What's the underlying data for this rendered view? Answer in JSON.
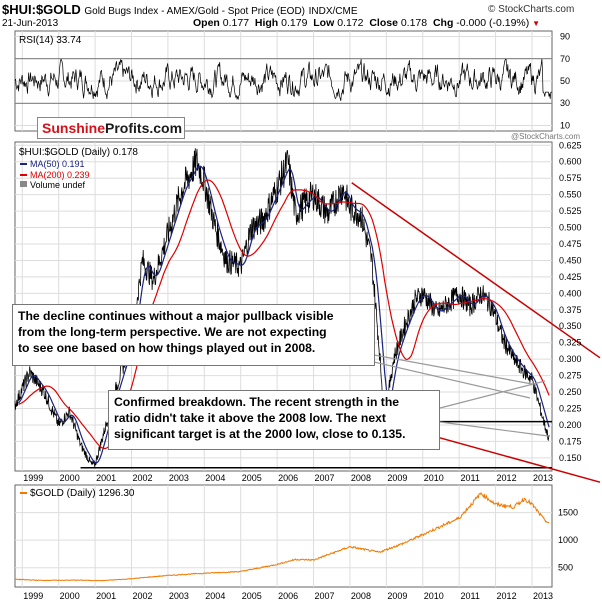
{
  "header": {
    "ticker": "$HUI:$GOLD",
    "description": "Gold Bugs Index - AMEX/Gold - Spot Price (EOD)",
    "exchange": "INDX/CME",
    "copyright": "© StockCharts.com",
    "date": "21-Jun-2013",
    "open_label": "Open",
    "open": "0.177",
    "high_label": "High",
    "high": "0.179",
    "low_label": "Low",
    "low": "0.172",
    "close_label": "Close",
    "close": "0.178",
    "chg_label": "Chg",
    "chg": "-0.000 (-0.19%)"
  },
  "watermark": {
    "left": "Sunshine",
    "right": "Profits.com",
    "stockcharts": "@StockCharts.com"
  },
  "legend": {
    "main": "$HUI:$GOLD (Daily) 0.178",
    "ma50": "MA(50) 0.191",
    "ma200": "MA(200) 0.239",
    "volume": "Volume undef",
    "gold": "$GOLD (Daily) 1296.30"
  },
  "annotations": {
    "box1": [
      "The decline continues without a major pullback visible",
      "from the long-term perspective. We are not expecting",
      "to see one based on how things played out in 2008."
    ],
    "box2": [
      "Confirmed breakdown. The recent strength in the",
      "ratio didn't take it above the 2008 low. The next",
      "significant target is at the 2000 low, close to 0.135."
    ]
  },
  "colors": {
    "price": "#000000",
    "ma50": "#1a237e",
    "ma200": "#e00000",
    "gold": "#f07800",
    "trend": "#cc0000",
    "grid": "#dddddd",
    "accent": "#d4121a"
  },
  "chart_data": [
    {
      "type": "line",
      "title": "RSI(14) 33.74",
      "series_name": "RSI(14)",
      "last_value": 33.74,
      "y_ticks": [
        10,
        30,
        50,
        70,
        90
      ],
      "ylim": [
        5,
        95
      ],
      "reference_lines": [
        30,
        70
      ]
    },
    {
      "type": "line",
      "title": "$HUI:$GOLD (Daily) 0.178",
      "x_ticks": [
        "1999",
        "2000",
        "2001",
        "2002",
        "2003",
        "2004",
        "2005",
        "2006",
        "2007",
        "2008",
        "2009",
        "2010",
        "2011",
        "2012",
        "2013"
      ],
      "y_ticks": [
        "0.625",
        "0.600",
        "0.575",
        "0.550",
        "0.525",
        "0.500",
        "0.475",
        "0.450",
        "0.425",
        "0.400",
        "0.375",
        "0.350",
        "0.325",
        "0.300",
        "0.275",
        "0.250",
        "0.225",
        "0.200",
        "0.175",
        "0.150"
      ],
      "ylim": [
        0.13,
        0.63
      ],
      "series": [
        {
          "name": "$HUI:$GOLD",
          "x": [
            1998.8,
            1999.2,
            1999.6,
            2000.0,
            2000.3,
            2000.6,
            2000.9,
            2001.0,
            2001.3,
            2001.6,
            2002.0,
            2002.3,
            2002.6,
            2003.0,
            2003.4,
            2003.8,
            2004.0,
            2004.3,
            2004.6,
            2005.0,
            2005.3,
            2005.6,
            2006.0,
            2006.3,
            2006.5,
            2006.8,
            2007.0,
            2007.4,
            2007.8,
            2008.0,
            2008.3,
            2008.6,
            2008.8,
            2008.95,
            2009.2,
            2009.5,
            2009.8,
            2010.0,
            2010.4,
            2010.8,
            2011.0,
            2011.3,
            2011.6,
            2011.9,
            2012.2,
            2012.5,
            2012.8,
            2013.0,
            2013.2,
            2013.35,
            2013.47
          ],
          "values": [
            0.23,
            0.28,
            0.25,
            0.2,
            0.22,
            0.17,
            0.14,
            0.14,
            0.2,
            0.26,
            0.33,
            0.45,
            0.42,
            0.49,
            0.56,
            0.6,
            0.57,
            0.5,
            0.45,
            0.44,
            0.5,
            0.51,
            0.56,
            0.6,
            0.52,
            0.54,
            0.55,
            0.52,
            0.56,
            0.53,
            0.52,
            0.45,
            0.32,
            0.21,
            0.3,
            0.35,
            0.39,
            0.4,
            0.37,
            0.39,
            0.4,
            0.38,
            0.4,
            0.38,
            0.33,
            0.3,
            0.28,
            0.27,
            0.23,
            0.2,
            0.178
          ]
        },
        {
          "name": "MA(50)",
          "last_value": 0.191
        },
        {
          "name": "MA(200)",
          "last_value": 0.239
        }
      ],
      "support_levels": [
        {
          "label": "2008 low",
          "value": 0.205
        },
        {
          "label": "2000 low",
          "value": 0.135
        }
      ],
      "trend_channel": "declining (2008-2013)"
    },
    {
      "type": "line",
      "title": "$GOLD (Daily) 1296.30",
      "series_name": "$GOLD",
      "last_value": 1296.3,
      "x_ticks": [
        "1999",
        "2000",
        "2001",
        "2002",
        "2003",
        "2004",
        "2005",
        "2006",
        "2007",
        "2008",
        "2009",
        "2010",
        "2011",
        "2012",
        "2013"
      ],
      "y_ticks": [
        500,
        1000,
        1500
      ],
      "ylim": [
        150,
        2000
      ],
      "x": [
        1998.8,
        1999.5,
        2000.5,
        2001.2,
        2002.0,
        2003.0,
        2004.0,
        2005.0,
        2006.0,
        2006.5,
        2007.0,
        2008.0,
        2008.8,
        2009.5,
        2010.0,
        2011.0,
        2011.6,
        2012.0,
        2012.5,
        2012.8,
        2013.0,
        2013.3,
        2013.47
      ],
      "values": [
        290,
        270,
        275,
        265,
        300,
        360,
        400,
        430,
        560,
        650,
        640,
        880,
        780,
        950,
        1100,
        1400,
        1850,
        1650,
        1600,
        1750,
        1650,
        1400,
        1296
      ]
    }
  ]
}
